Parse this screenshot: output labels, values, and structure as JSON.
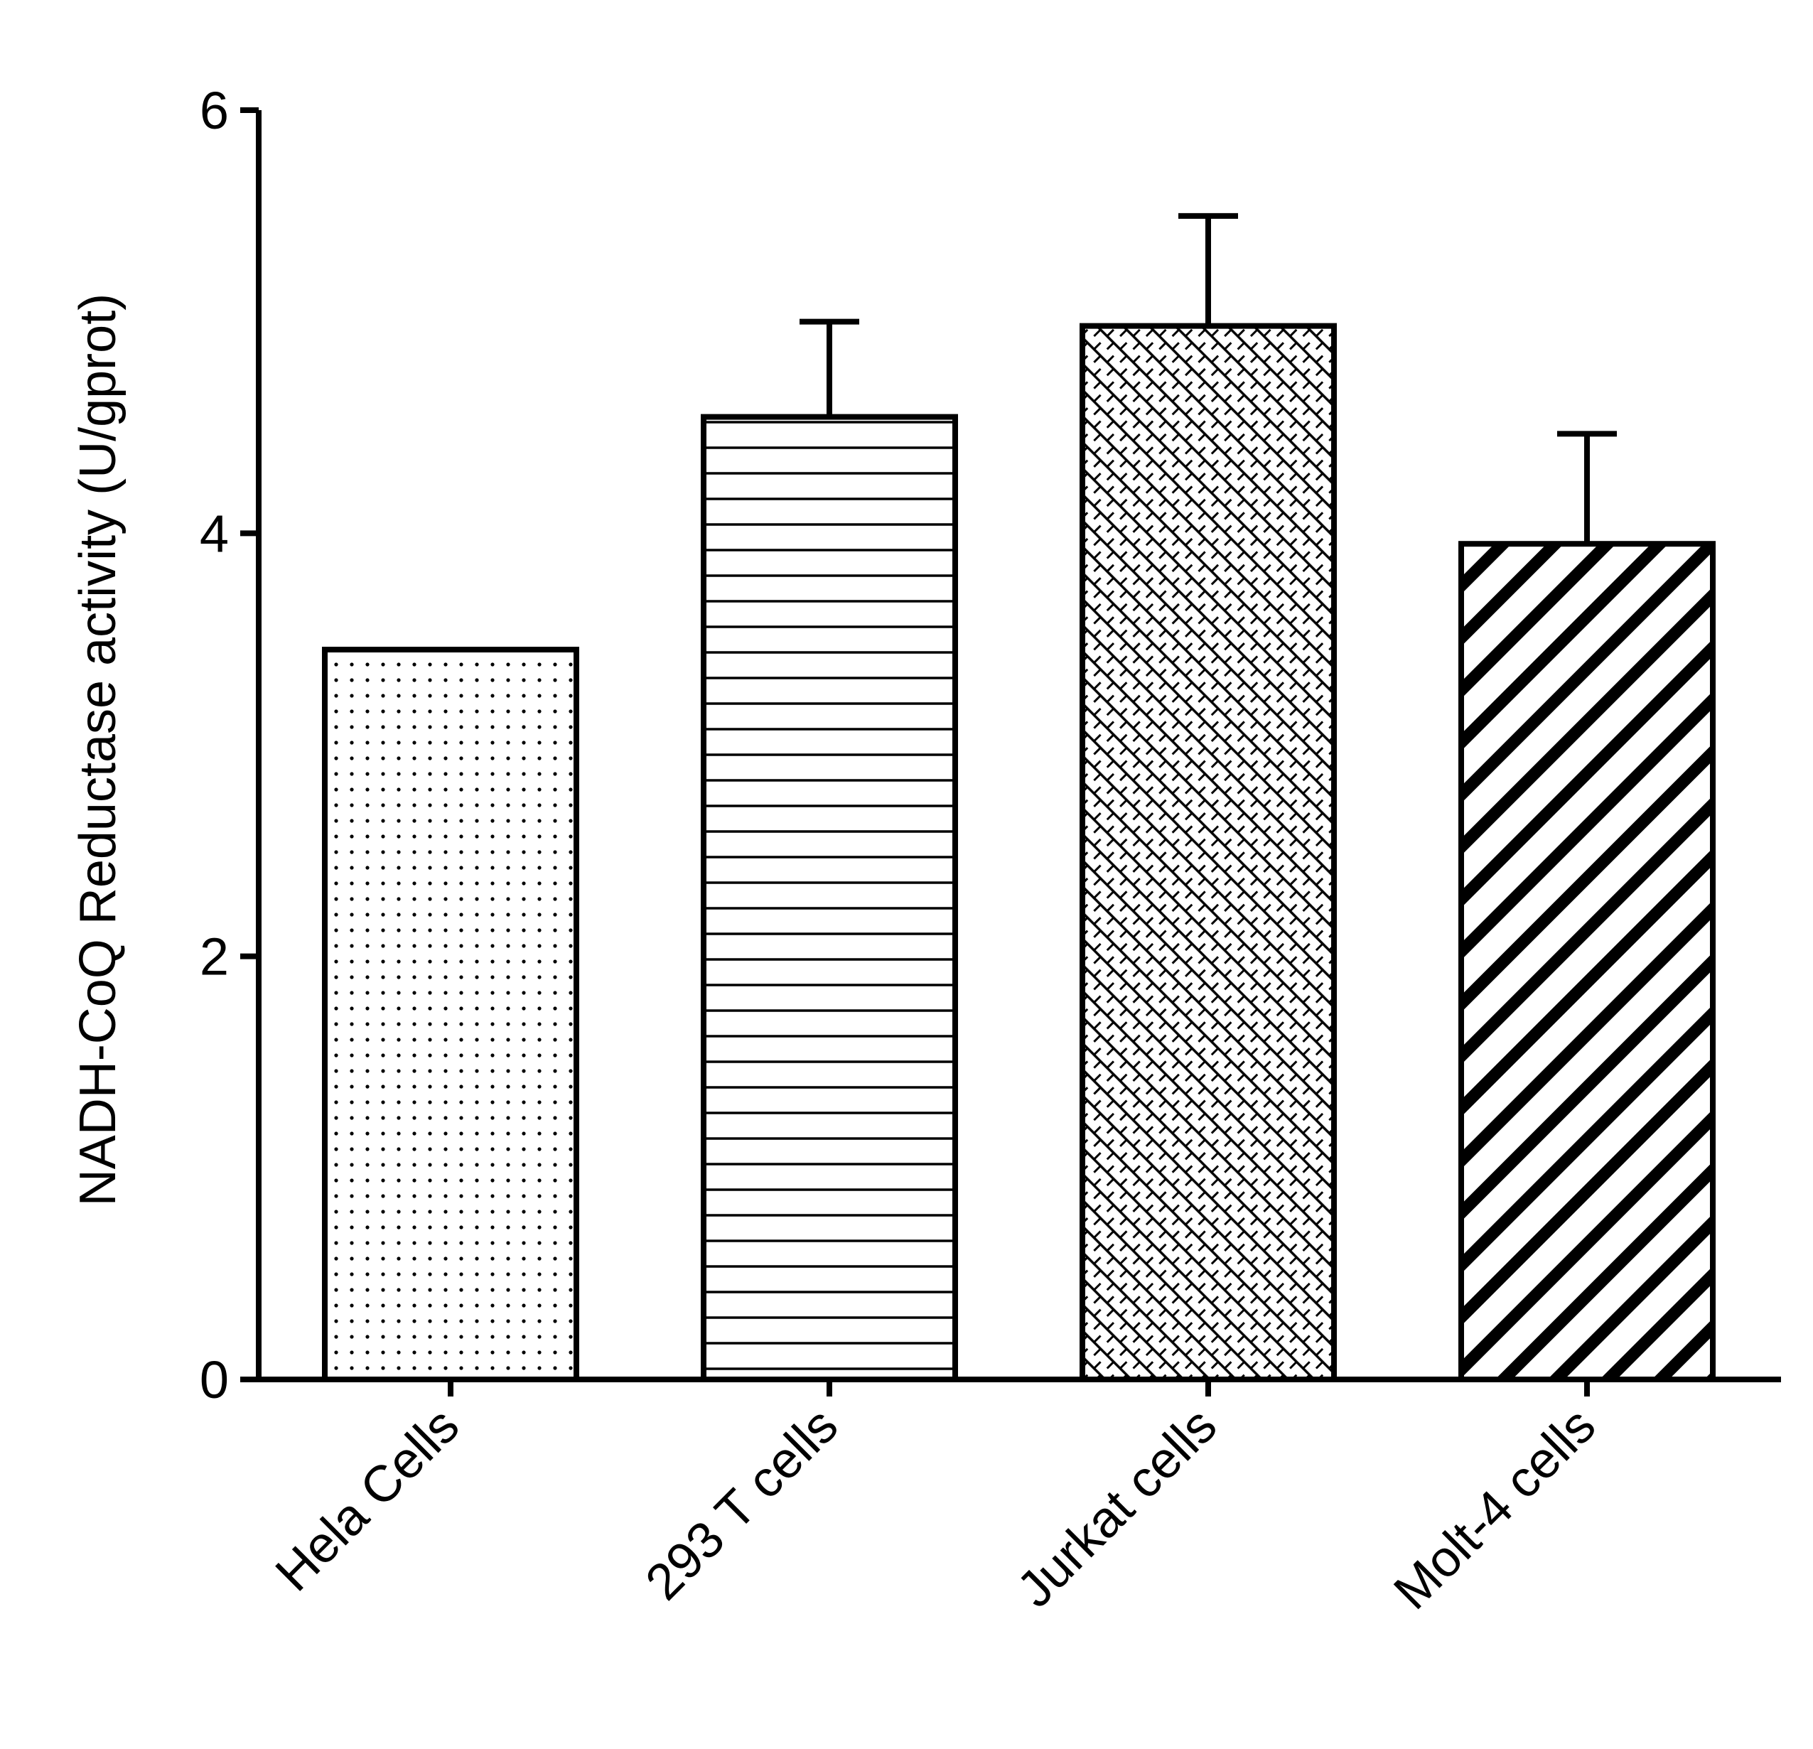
{
  "chart_data": {
    "type": "bar",
    "title": "",
    "xlabel": "",
    "ylabel": "NADH-CoQ Reductase activity (U/gprot)",
    "categories": [
      "Hela Cells",
      "293 T cells",
      "Jurkat cells",
      "Molt-4 cells"
    ],
    "values": [
      3.45,
      4.55,
      4.98,
      3.95
    ],
    "error_plus": [
      0.0,
      0.45,
      0.52,
      0.52
    ],
    "ylim": [
      0,
      6
    ],
    "yticks": [
      0,
      2,
      4,
      6
    ],
    "ytick_labels": [
      "0",
      "2",
      "4",
      "6"
    ],
    "fill_patterns": [
      "dots",
      "horizontal-lines",
      "crosshatch-dashes",
      "diagonal-stripes"
    ],
    "grid": false,
    "legend": "none",
    "colors": {
      "stroke": "#000000",
      "fill": "#ffffff"
    }
  }
}
